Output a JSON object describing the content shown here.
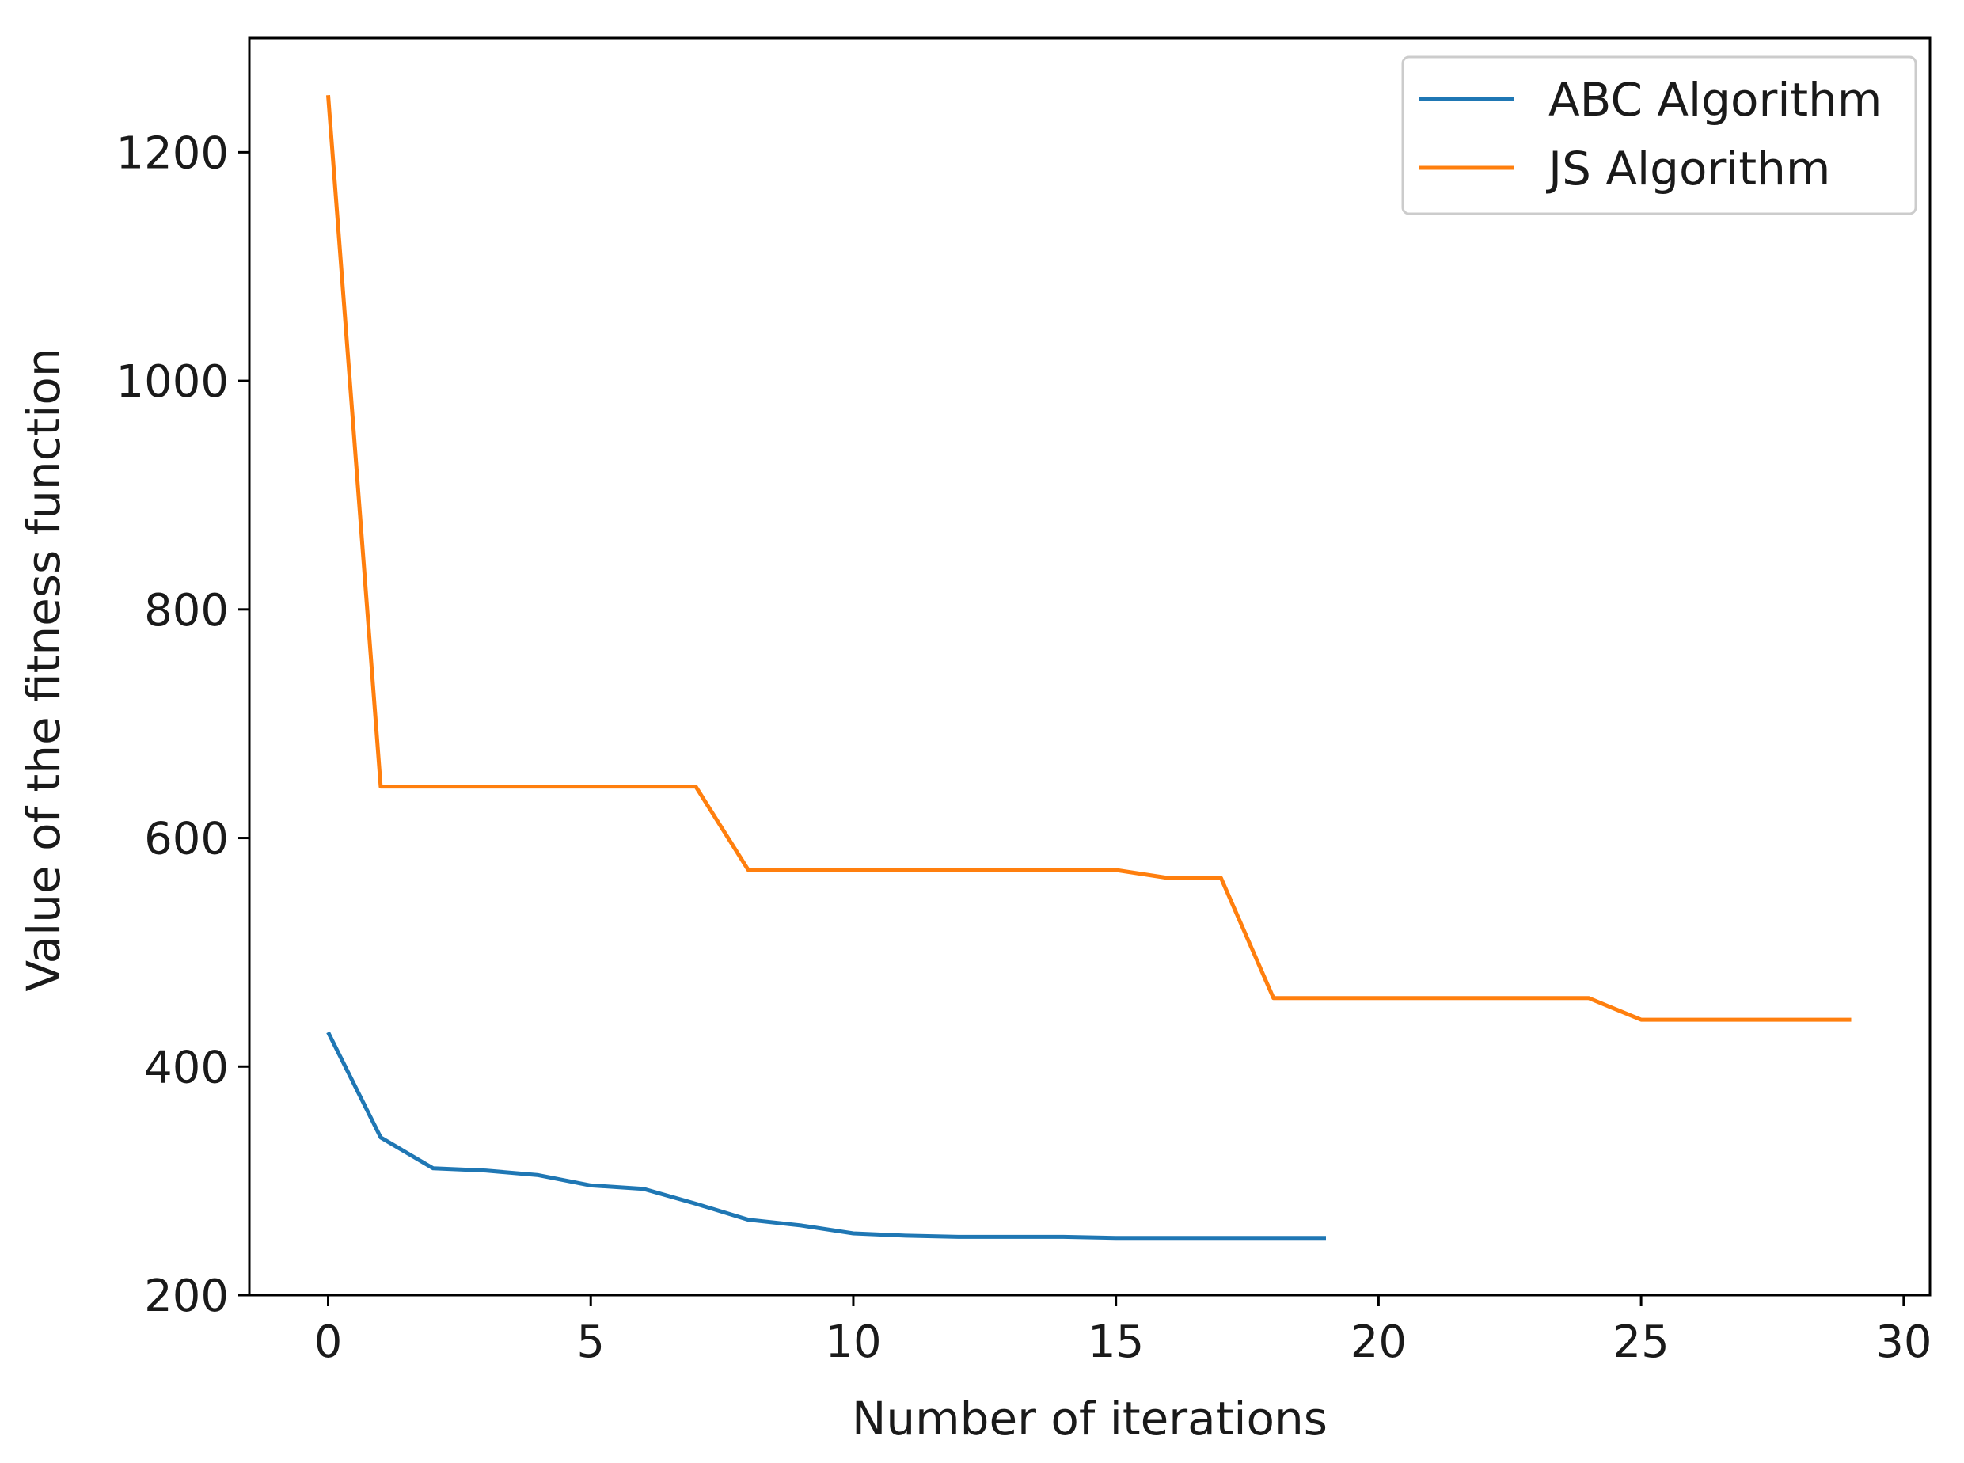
{
  "chart_data": {
    "type": "line",
    "title": "",
    "xlabel": "Number of iterations",
    "ylabel": "Value of the fitness function",
    "xlim": [
      -1.5,
      30.5
    ],
    "ylim": [
      200,
      1300
    ],
    "xticks": [
      0,
      5,
      10,
      15,
      20,
      25,
      30
    ],
    "yticks": [
      200,
      400,
      600,
      800,
      1000,
      1200
    ],
    "grid": false,
    "legend_position": "top-right",
    "series": [
      {
        "name": "ABC Algorithm",
        "color": "#1f77b4",
        "x": [
          0,
          1,
          2,
          3,
          4,
          5,
          6,
          7,
          8,
          9,
          10,
          11,
          12,
          13,
          14,
          15,
          16,
          17,
          18,
          19
        ],
        "y": [
          430,
          338,
          311,
          309,
          305,
          296,
          293,
          280,
          266,
          261,
          254,
          252,
          251,
          251,
          251,
          250,
          250,
          250,
          250,
          250
        ]
      },
      {
        "name": "JS Algorithm",
        "color": "#ff7f0e",
        "x": [
          0,
          1,
          2,
          3,
          4,
          5,
          6,
          7,
          8,
          9,
          10,
          11,
          12,
          13,
          14,
          15,
          16,
          17,
          18,
          19,
          20,
          21,
          22,
          23,
          24,
          25,
          26,
          27,
          28,
          29
        ],
        "y": [
          1250,
          645,
          645,
          645,
          645,
          645,
          645,
          645,
          572,
          572,
          572,
          572,
          572,
          572,
          572,
          572,
          565,
          565,
          460,
          460,
          460,
          460,
          460,
          460,
          460,
          441,
          441,
          441,
          441,
          441
        ]
      }
    ]
  }
}
